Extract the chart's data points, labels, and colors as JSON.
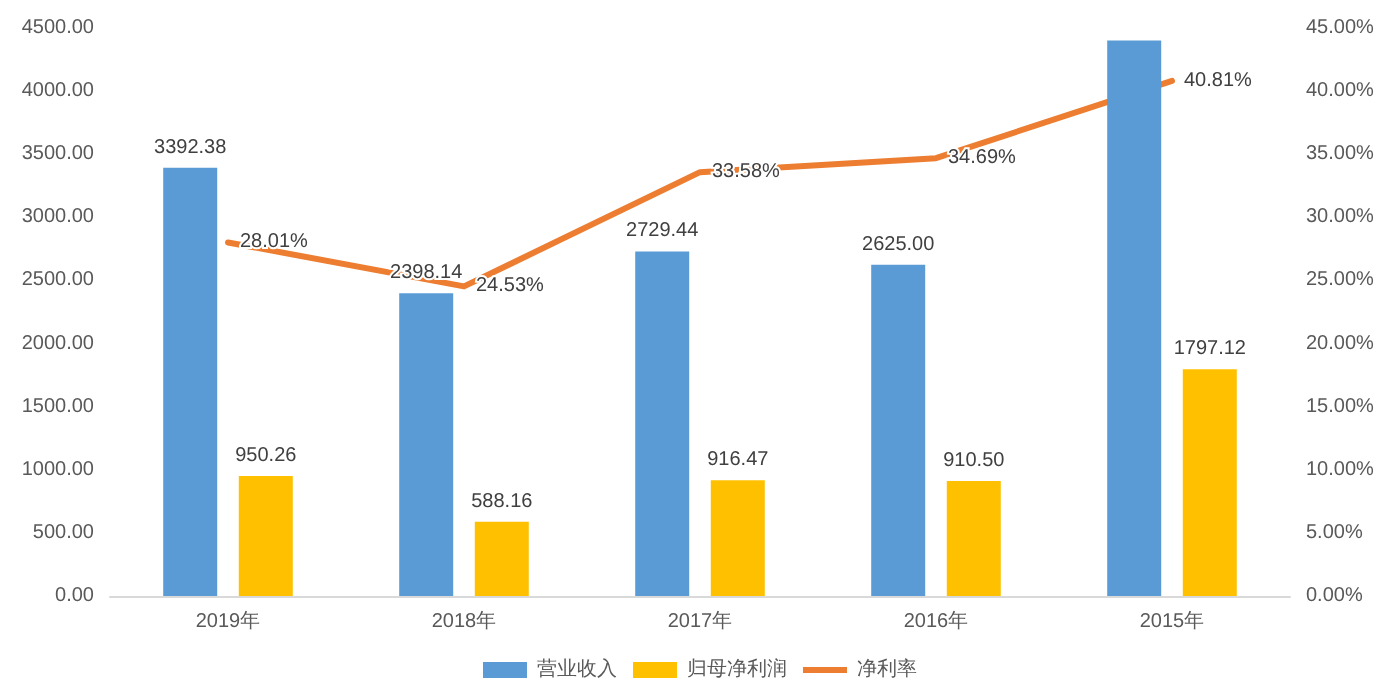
{
  "chart_data": {
    "type": "bar",
    "categories": [
      "2019年",
      "2018年",
      "2017年",
      "2016年",
      "2015年"
    ],
    "series": [
      {
        "name": "营业收入",
        "color": "#5b9bd5",
        "values": [
          3392.38,
          2398.14,
          2729.44,
          2625.0,
          4400
        ],
        "value_labels": [
          "3392.38",
          "2398.14",
          "2729.44",
          "2625.00",
          null
        ]
      },
      {
        "name": "归母净利润",
        "color": "#ffc000",
        "values": [
          950.26,
          588.16,
          916.47,
          910.5,
          1797.12
        ],
        "value_labels": [
          "950.26",
          "588.16",
          "916.47",
          "910.50",
          "1797.12"
        ]
      },
      {
        "name": "净利率",
        "type": "line",
        "axis": "y2",
        "color": "#ed7d31",
        "values": [
          28.01,
          24.53,
          33.58,
          34.69,
          40.81
        ],
        "value_labels": [
          "28.01%",
          "24.53%",
          "33.58%",
          "34.69%",
          "40.81%"
        ]
      }
    ],
    "ylim": [
      0,
      4500
    ],
    "yticks": [
      {
        "value": 0,
        "label": "0.00"
      },
      {
        "value": 500,
        "label": "500.00"
      },
      {
        "value": 1000,
        "label": "1000.00"
      },
      {
        "value": 1500,
        "label": "1500.00"
      },
      {
        "value": 2000,
        "label": "2000.00"
      },
      {
        "value": 2500,
        "label": "2500.00"
      },
      {
        "value": 3000,
        "label": "3000.00"
      },
      {
        "value": 3500,
        "label": "3500.00"
      },
      {
        "value": 4000,
        "label": "4000.00"
      },
      {
        "value": 4500,
        "label": "4500.00"
      }
    ],
    "y2lim": [
      0,
      45
    ],
    "y2ticks": [
      {
        "value": 0,
        "label": "0.00%"
      },
      {
        "value": 5,
        "label": "5.00%"
      },
      {
        "value": 10,
        "label": "10.00%"
      },
      {
        "value": 15,
        "label": "15.00%"
      },
      {
        "value": 20,
        "label": "20.00%"
      },
      {
        "value": 25,
        "label": "25.00%"
      },
      {
        "value": 30,
        "label": "30.00%"
      },
      {
        "value": 35,
        "label": "35.00%"
      },
      {
        "value": 40,
        "label": "40.00%"
      },
      {
        "value": 45,
        "label": "45.00%"
      }
    ],
    "legend": "bottom",
    "marker": "none",
    "line_style": "solid"
  }
}
